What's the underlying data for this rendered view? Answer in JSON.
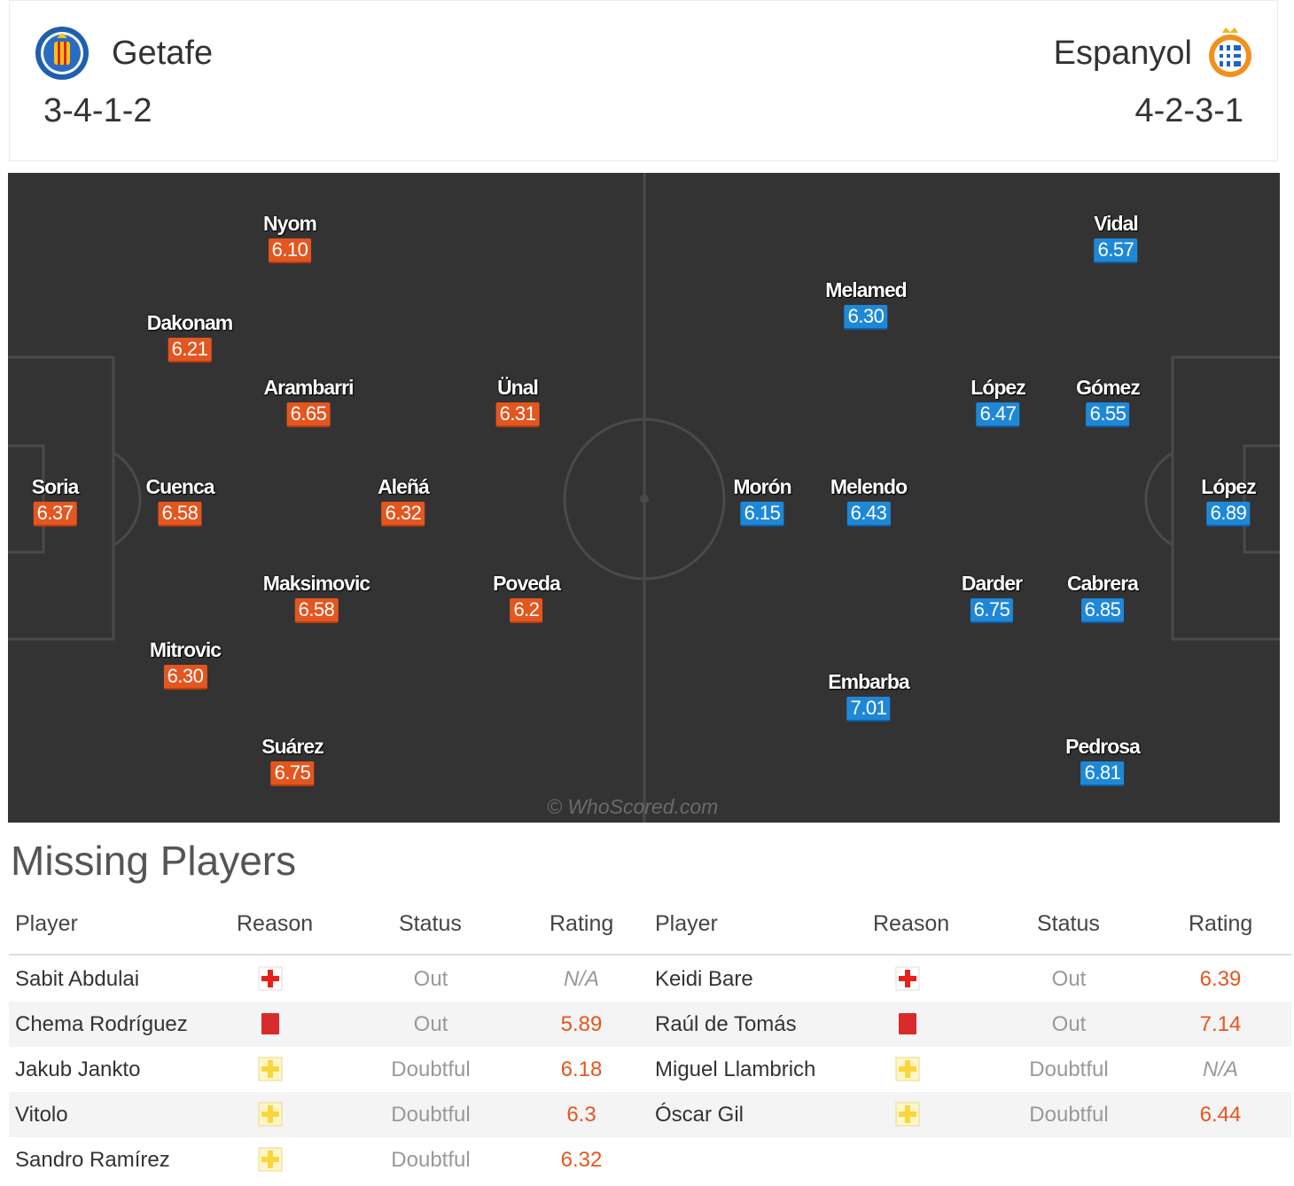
{
  "home": {
    "team": "Getafe",
    "formation": "3-4-1-2",
    "players": [
      {
        "name": "Nyom",
        "rating": "6.10"
      },
      {
        "name": "Dakonam",
        "rating": "6.21"
      },
      {
        "name": "Arambarri",
        "rating": "6.65"
      },
      {
        "name": "Ünal",
        "rating": "6.31"
      },
      {
        "name": "Soria",
        "rating": "6.37"
      },
      {
        "name": "Cuenca",
        "rating": "6.58"
      },
      {
        "name": "Aleñá",
        "rating": "6.32"
      },
      {
        "name": "Maksimovic",
        "rating": "6.58"
      },
      {
        "name": "Poveda",
        "rating": "6.2"
      },
      {
        "name": "Mitrovic",
        "rating": "6.30"
      },
      {
        "name": "Suárez",
        "rating": "6.75"
      }
    ]
  },
  "away": {
    "team": "Espanyol",
    "formation": "4-2-3-1",
    "players": [
      {
        "name": "Vidal",
        "rating": "6.57"
      },
      {
        "name": "Melamed",
        "rating": "6.30"
      },
      {
        "name": "López",
        "rating": "6.47"
      },
      {
        "name": "Gómez",
        "rating": "6.55"
      },
      {
        "name": "Morón",
        "rating": "6.15"
      },
      {
        "name": "Melendo",
        "rating": "6.43"
      },
      {
        "name": "López",
        "rating": "6.89"
      },
      {
        "name": "Darder",
        "rating": "6.75"
      },
      {
        "name": "Cabrera",
        "rating": "6.85"
      },
      {
        "name": "Embarba",
        "rating": "7.01"
      },
      {
        "name": "Pedrosa",
        "rating": "6.81"
      }
    ]
  },
  "watermark": "© WhoScored.com",
  "missing": {
    "title": "Missing Players",
    "headers": [
      "Player",
      "Reason",
      "Status",
      "Rating"
    ],
    "home": [
      {
        "player": "Sabit Abdulai",
        "reason": "injury",
        "status": "Out",
        "rating": "N/A"
      },
      {
        "player": "Chema Rodríguez",
        "reason": "red-card",
        "status": "Out",
        "rating": "5.89"
      },
      {
        "player": "Jakub Jankto",
        "reason": "doubtful",
        "status": "Doubtful",
        "rating": "6.18"
      },
      {
        "player": "Vitolo",
        "reason": "doubtful",
        "status": "Doubtful",
        "rating": "6.3"
      },
      {
        "player": "Sandro Ramírez",
        "reason": "doubtful",
        "status": "Doubtful",
        "rating": "6.32"
      }
    ],
    "away": [
      {
        "player": "Keidi Bare",
        "reason": "injury",
        "status": "Out",
        "rating": "6.39"
      },
      {
        "player": "Raúl de Tomás",
        "reason": "red-card",
        "status": "Out",
        "rating": "7.14"
      },
      {
        "player": "Miguel Llambrich",
        "reason": "doubtful",
        "status": "Doubtful",
        "rating": "N/A"
      },
      {
        "player": "Óscar Gil",
        "reason": "doubtful",
        "status": "Doubtful",
        "rating": "6.44"
      }
    ]
  },
  "colors": {
    "home_rating": "#e4561f",
    "away_rating": "#1e88d8",
    "pitch": "#333333",
    "injury": "#e8201c",
    "red_card": "#d92b2b",
    "doubtful": "#f9d63c"
  }
}
